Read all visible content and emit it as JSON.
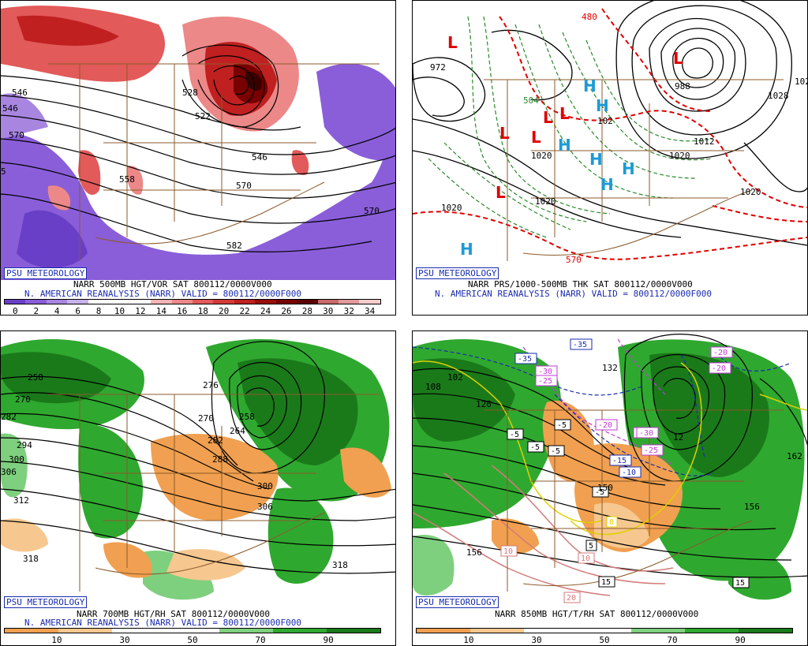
{
  "panels": [
    {
      "logo": "PSU METEOROLOGY",
      "line1": "NARR 500MB HGT/VOR SAT 800112/0000V000",
      "line2": "N. AMERICAN REANALYSIS (NARR) VALID = 800112/0000F000",
      "colorbar_ticks": [
        "0",
        "2",
        "4",
        "6",
        "8",
        "10",
        "12",
        "14",
        "16",
        "18",
        "20",
        "22",
        "24",
        "26",
        "28",
        "30",
        "32",
        "34"
      ],
      "colorbar_colors": [
        "#6a3fc8",
        "#8a5ed8",
        "#a886e0",
        "#c9b2ec",
        "#ffffff",
        "#ffffff",
        "#ffffff",
        "#f4b4b4",
        "#ec8888",
        "#e25a5a",
        "#d43a3a",
        "#c02020",
        "#9a0c0c",
        "#780000",
        "#5a0000",
        "#c86a6a",
        "#e09a9a",
        "#f8cccc"
      ],
      "contour_labels": [
        "546",
        "570",
        "570",
        "582",
        "546",
        "528",
        "522",
        "546",
        "558",
        "570",
        "5"
      ]
    },
    {
      "logo": "PSU METEOROLOGY",
      "line1": "NARR PRS/1000-500MB THK SAT 800112/0000V000",
      "line2": "N. AMERICAN REANALYSIS (NARR) VALID = 800112/0000F000",
      "labels_L": [
        "L",
        "L",
        "L",
        "L",
        "L",
        "L",
        "L"
      ],
      "labels_H": [
        "H",
        "H",
        "H",
        "H",
        "H",
        "H",
        "H"
      ],
      "contour_labels": [
        "972",
        "1020",
        "1020",
        "1020",
        "1020",
        "1028",
        "1012",
        "988",
        "570",
        "480",
        "1020",
        "102",
        "1020",
        "504"
      ]
    },
    {
      "logo": "PSU METEOROLOGY",
      "line1": "NARR 700MB HGT/RH SAT 800112/0000V000",
      "line2": "N. AMERICAN REANALYSIS (NARR) VALID = 800112/0000F000",
      "colorbar_ticks": [
        "10",
        "30",
        "50",
        "70",
        "90"
      ],
      "colorbar_colors": [
        "#f0a050",
        "#f6c890",
        "#ffffff",
        "#ffffff",
        "#7ed07e",
        "#2fa82f",
        "#1a7a1a"
      ],
      "contour_labels": [
        "258",
        "270",
        "282",
        "294",
        "300",
        "306",
        "312",
        "318",
        "318",
        "306",
        "300",
        "288",
        "282",
        "270",
        "258",
        "264",
        "276",
        "252"
      ]
    },
    {
      "logo": "PSU METEOROLOGY",
      "line1": "NARR 850MB HGT/T/RH SAT 800112/0000V000",
      "colorbar_ticks": [
        "10",
        "30",
        "50",
        "70",
        "90"
      ],
      "colorbar_colors": [
        "#f0a050",
        "#f6c890",
        "#ffffff",
        "#ffffff",
        "#7ed07e",
        "#2fa82f",
        "#1a7a1a"
      ],
      "temp_labels": [
        "-35",
        "-35",
        "-30",
        "-25",
        "-20",
        "-20",
        "-15",
        "-15",
        "-10",
        "-5",
        "-5",
        "-5",
        "-5",
        "-5",
        "-25",
        "-30",
        "-20",
        "0",
        "5",
        "10",
        "10",
        "15",
        "15",
        "20"
      ],
      "contour_labels": [
        "108",
        "102",
        "126",
        "132",
        "150",
        "156",
        "156",
        "162",
        "12"
      ]
    }
  ]
}
